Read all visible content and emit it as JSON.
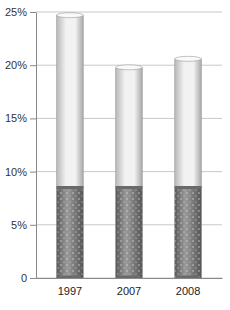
{
  "chart_data": {
    "type": "bar",
    "categories": [
      "1997",
      "2007",
      "2008"
    ],
    "values": [
      24.7,
      19.8,
      20.6
    ],
    "color": "#f2f2f2",
    "ylim": [
      0,
      25
    ],
    "yticks": [
      0,
      {
        "value": 5,
        "label": "5%"
      },
      {
        "value": 10,
        "label": "10%"
      },
      {
        "value": 15,
        "label": "15%"
      },
      {
        "value": 20,
        "label": "20%"
      },
      {
        "value": 25,
        "label": "25%"
      }
    ],
    "grid": true
  }
}
